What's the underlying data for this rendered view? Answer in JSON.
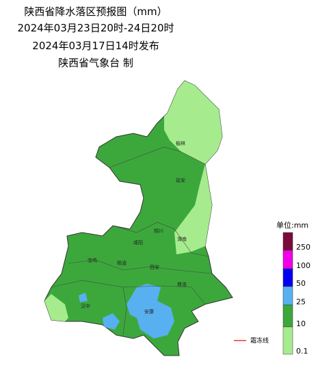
{
  "header": {
    "title": "陕西省降水落区预报图（mm）",
    "period": "2024年03月23日20时-24日20时",
    "issued": "2024年03月17日14时发布",
    "author": "陕西省气象台 制"
  },
  "cities": [
    {
      "label": "榆林"
    },
    {
      "label": "延安"
    },
    {
      "label": "铜川"
    },
    {
      "label": "渭南"
    },
    {
      "label": "咸阳"
    },
    {
      "label": "西安"
    },
    {
      "label": "杨凌"
    },
    {
      "label": "宝鸡"
    },
    {
      "label": "汉中"
    },
    {
      "label": "商洛"
    },
    {
      "label": "安康"
    }
  ],
  "legend": {
    "title": "单位:mm",
    "items": [
      {
        "label": 250,
        "color": "#7a0c3a"
      },
      {
        "label": 100,
        "color": "#f000e8"
      },
      {
        "label": 50,
        "color": "#0000f0"
      },
      {
        "label": 25,
        "color": "#58b0f0"
      },
      {
        "label": 10,
        "color": "#3ca83c"
      },
      {
        "label": 0.1,
        "color": "#a6ec8e"
      }
    ]
  },
  "frost_line": {
    "label": "霜冻线"
  }
}
